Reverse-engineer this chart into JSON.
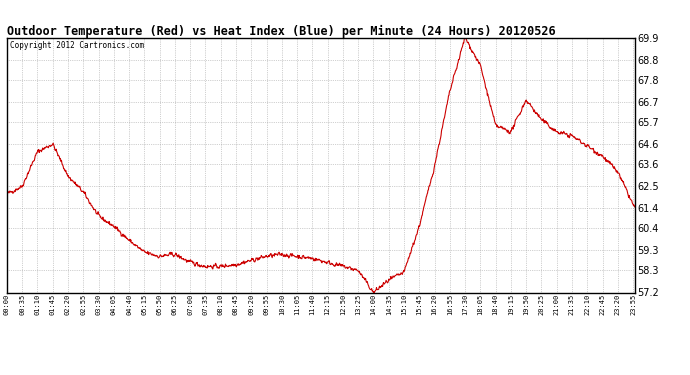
{
  "title": "Outdoor Temperature (Red) vs Heat Index (Blue) per Minute (24 Hours) 20120526",
  "copyright": "Copyright 2012 Cartronics.com",
  "ymin": 57.2,
  "ymax": 69.9,
  "yticks": [
    69.9,
    68.8,
    67.8,
    66.7,
    65.7,
    64.6,
    63.6,
    62.5,
    61.4,
    60.4,
    59.3,
    58.3,
    57.2
  ],
  "line_color": "#cc0000",
  "background_color": "#ffffff",
  "grid_color": "#999999",
  "xtick_labels": [
    "00:00",
    "00:35",
    "01:10",
    "01:45",
    "02:20",
    "02:55",
    "03:30",
    "04:05",
    "04:40",
    "05:15",
    "05:50",
    "06:25",
    "07:00",
    "07:35",
    "08:10",
    "08:45",
    "09:20",
    "09:55",
    "10:30",
    "11:05",
    "11:40",
    "12:15",
    "12:50",
    "13:25",
    "14:00",
    "14:35",
    "15:10",
    "15:45",
    "16:20",
    "16:55",
    "17:30",
    "18:05",
    "18:40",
    "19:15",
    "19:50",
    "20:25",
    "21:00",
    "21:35",
    "22:10",
    "22:45",
    "23:20",
    "23:55"
  ],
  "red_data_x": [
    0,
    35,
    70,
    105,
    140,
    175,
    210,
    245,
    280,
    315,
    350,
    385,
    420,
    455,
    490,
    525,
    560,
    595,
    630,
    665,
    700,
    735,
    770,
    805,
    840,
    875,
    910,
    945,
    980,
    1015,
    1050,
    1085,
    1120,
    1155,
    1190,
    1225,
    1260,
    1295,
    1330,
    1365,
    1400,
    1439
  ],
  "red_data_y": [
    62.1,
    62.5,
    64.2,
    64.6,
    63.0,
    62.2,
    61.0,
    60.5,
    59.8,
    59.2,
    59.0,
    59.1,
    58.7,
    58.5,
    58.5,
    58.6,
    58.8,
    59.0,
    59.1,
    59.0,
    58.9,
    58.7,
    58.5,
    58.3,
    57.2,
    57.8,
    58.2,
    60.5,
    63.5,
    67.2,
    69.9,
    68.5,
    65.5,
    65.2,
    66.8,
    65.8,
    65.2,
    65.0,
    64.5,
    64.0,
    63.2,
    61.4
  ],
  "noise_seed": 42,
  "noise_std": 0.15
}
